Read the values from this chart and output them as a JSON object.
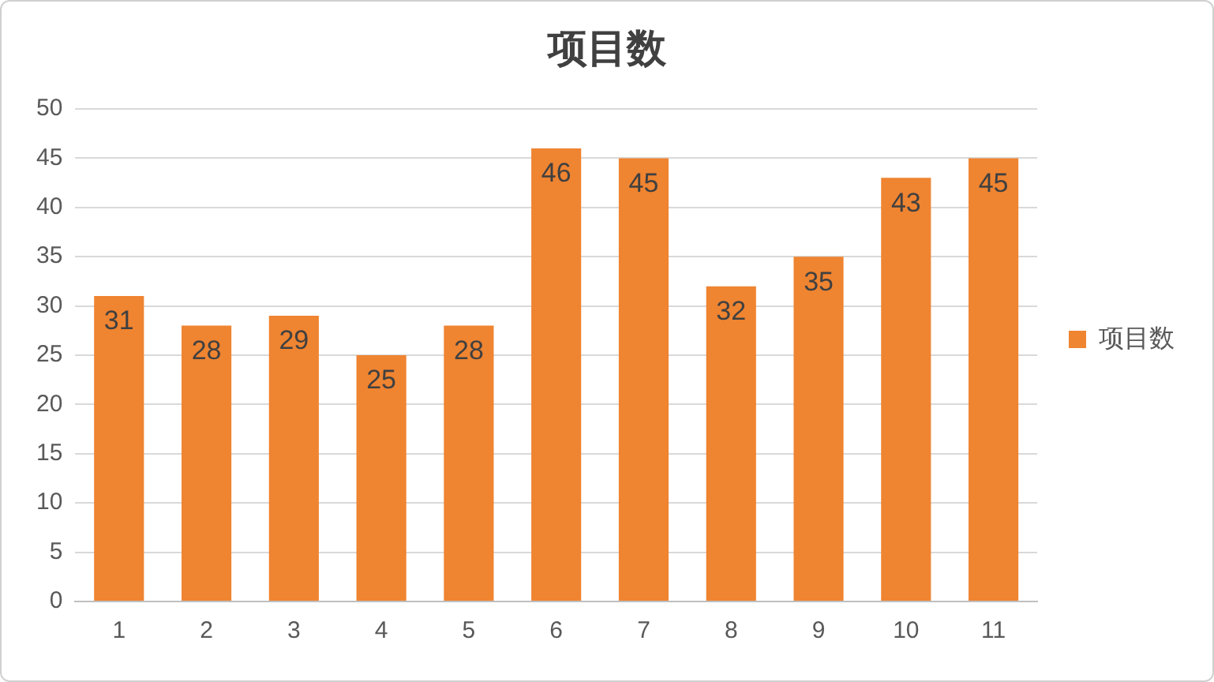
{
  "chart_data": {
    "type": "bar",
    "title": "项目数",
    "categories": [
      "1",
      "2",
      "3",
      "4",
      "5",
      "6",
      "7",
      "8",
      "9",
      "10",
      "11"
    ],
    "series": [
      {
        "name": "项目数",
        "color": "#ef8431",
        "values": [
          31,
          28,
          29,
          25,
          28,
          46,
          45,
          32,
          35,
          43,
          45
        ]
      }
    ],
    "ylim": [
      0,
      50
    ],
    "yticks": [
      0,
      5,
      10,
      15,
      20,
      25,
      30,
      35,
      40,
      45,
      50
    ],
    "grid": "y",
    "legend": "right",
    "data_labels": true
  }
}
